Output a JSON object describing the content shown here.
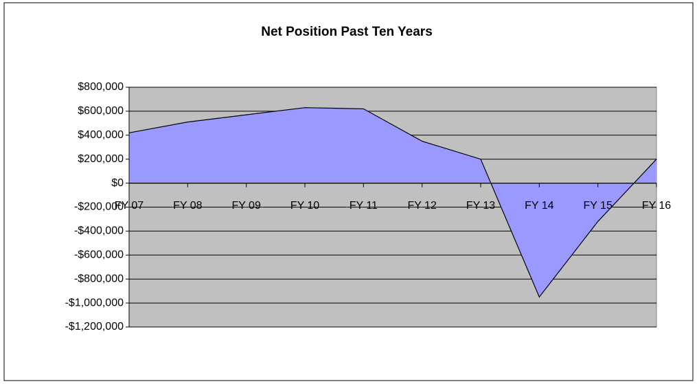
{
  "chart_data": {
    "type": "area",
    "title": "Net Position Past Ten Years",
    "categories": [
      "FY 07",
      "FY 08",
      "FY 09",
      "FY 10",
      "FY 11",
      "FY 12",
      "FY 13",
      "FY 14",
      "FY 15",
      "FY 16"
    ],
    "values": [
      420000,
      510000,
      570000,
      630000,
      620000,
      350000,
      200000,
      -950000,
      -320000,
      200000
    ],
    "color": "#9999ff",
    "ylim": [
      -1200000,
      800000
    ],
    "yticks": [
      {
        "value": -1200000,
        "label": "-$1,200,000"
      },
      {
        "value": -1000000,
        "label": "-$1,000,000"
      },
      {
        "value": -800000,
        "label": "-$800,000"
      },
      {
        "value": -600000,
        "label": "-$600,000"
      },
      {
        "value": -400000,
        "label": "-$400,000"
      },
      {
        "value": -200000,
        "label": "-$200,000"
      },
      {
        "value": 0,
        "label": "$0"
      },
      {
        "value": 200000,
        "label": "$200,000"
      },
      {
        "value": 400000,
        "label": "$400,000"
      },
      {
        "value": 600000,
        "label": "$600,000"
      },
      {
        "value": 800000,
        "label": "$800,000"
      }
    ],
    "grid": true
  }
}
